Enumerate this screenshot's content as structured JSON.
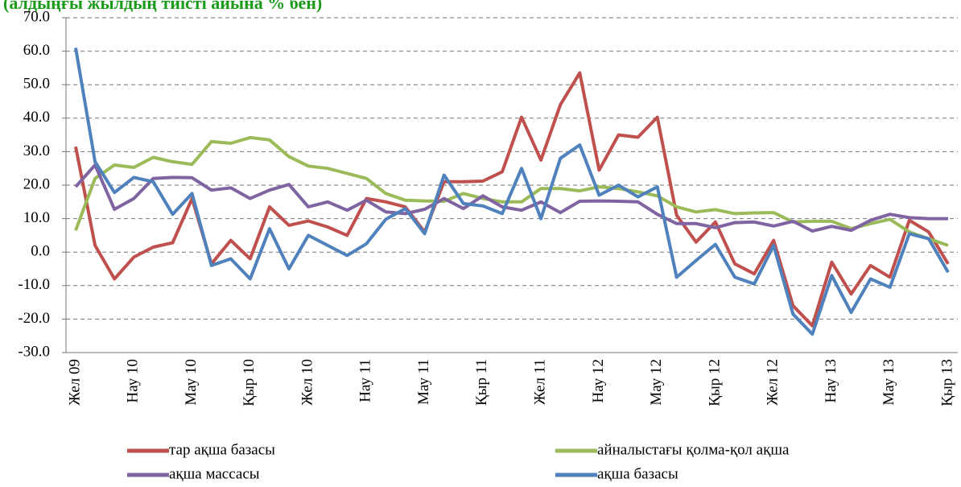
{
  "chart_data": {
    "type": "line",
    "title": "(алдыңғы жылдың тиісті айына % бен)",
    "categories": [
      "Жел 09",
      null,
      null,
      "Нау 10",
      null,
      null,
      "Мау 10",
      null,
      null,
      "Қыр 10",
      null,
      null,
      "Жел 10",
      null,
      null,
      "Нау 11",
      null,
      null,
      "Мау 11",
      null,
      null,
      "Қыр 11",
      null,
      null,
      "Жел 11",
      null,
      null,
      "Нау 12",
      null,
      null,
      "Мау 12",
      null,
      null,
      "Қыр 12",
      null,
      null,
      "Жел 12",
      null,
      null,
      "Нау 13",
      null,
      null,
      "Мау 13",
      null,
      null,
      "Қыр 13"
    ],
    "series": [
      {
        "name": "тар ақша базасы",
        "color": "#c0504d",
        "values": [
          31.5,
          2,
          -8,
          -1.5,
          1.5,
          2.8,
          16,
          -3.5,
          3.5,
          -2,
          13.5,
          8,
          9.3,
          7.5,
          5,
          16,
          15,
          13.5,
          6,
          21,
          21,
          21.2,
          24,
          40.3,
          27.5,
          44,
          53.5,
          24.5,
          35,
          34.3,
          40.3,
          11,
          3,
          9,
          -3.5,
          -6.5,
          3.5,
          -16,
          -22,
          -3,
          -12.5,
          -4,
          -7.5,
          9.5,
          6,
          -3.5
        ]
      },
      {
        "name": "айналыстағы қолма-қол ақша",
        "color": "#9bbb59",
        "values": [
          6.5,
          22,
          26,
          25.3,
          28.3,
          27,
          26.2,
          33,
          32.5,
          34.2,
          33.5,
          28.5,
          25.7,
          25,
          23.5,
          22,
          17.5,
          15.5,
          15.3,
          15.2,
          17.5,
          16,
          15,
          15,
          19,
          19,
          18.3,
          19.5,
          19,
          18,
          16.8,
          13.5,
          12,
          12.7,
          11.5,
          11.7,
          11.8,
          9,
          9.2,
          9.2,
          7,
          8.5,
          9.8,
          6,
          4,
          2
        ]
      },
      {
        "name": "ақша массасы",
        "color": "#8064a2",
        "values": [
          19.5,
          26,
          12.8,
          16,
          22,
          22.3,
          22.2,
          18.5,
          19.2,
          16,
          18.5,
          20.2,
          13.5,
          15,
          12.5,
          15.5,
          12,
          11.5,
          12.8,
          16,
          13,
          16.8,
          13.5,
          12.5,
          15,
          11.8,
          15.2,
          15.3,
          15.2,
          15,
          11.3,
          8.5,
          8.5,
          7.3,
          8.8,
          9,
          7.8,
          9.2,
          6.3,
          7.7,
          6.5,
          9.5,
          11.3,
          10.3,
          10,
          10
        ]
      },
      {
        "name": "ақша базасы",
        "color": "#4f81bd",
        "values": [
          61,
          27,
          17.8,
          22.3,
          21,
          11.3,
          17.5,
          -4,
          -2,
          -8,
          7,
          -5,
          5,
          2,
          -1,
          2.5,
          9.8,
          13,
          5.5,
          23,
          14.5,
          13.8,
          11.5,
          25,
          10,
          28,
          32,
          17,
          20,
          16.5,
          19.5,
          -7.5,
          -2.5,
          2.3,
          -7.5,
          -9.5,
          2,
          -18.5,
          -24.5,
          -7,
          -18,
          -8,
          -10.5,
          5.5,
          4,
          -6
        ]
      }
    ],
    "ylim": [
      -30,
      70
    ],
    "yticks": [
      {
        "value": -30,
        "label": "-30.0"
      },
      {
        "value": -20,
        "label": "-20.0"
      },
      {
        "value": -10,
        "label": "-10.0"
      },
      {
        "value": 0,
        "label": "0.0"
      },
      {
        "value": 10,
        "label": "10.0"
      },
      {
        "value": 20,
        "label": "20.0"
      },
      {
        "value": 30,
        "label": "30.0"
      },
      {
        "value": 40,
        "label": "40.0"
      },
      {
        "value": 50,
        "label": "50.0"
      },
      {
        "value": 60,
        "label": "60.0"
      },
      {
        "value": 70,
        "label": "70.0"
      }
    ],
    "grid": true
  }
}
